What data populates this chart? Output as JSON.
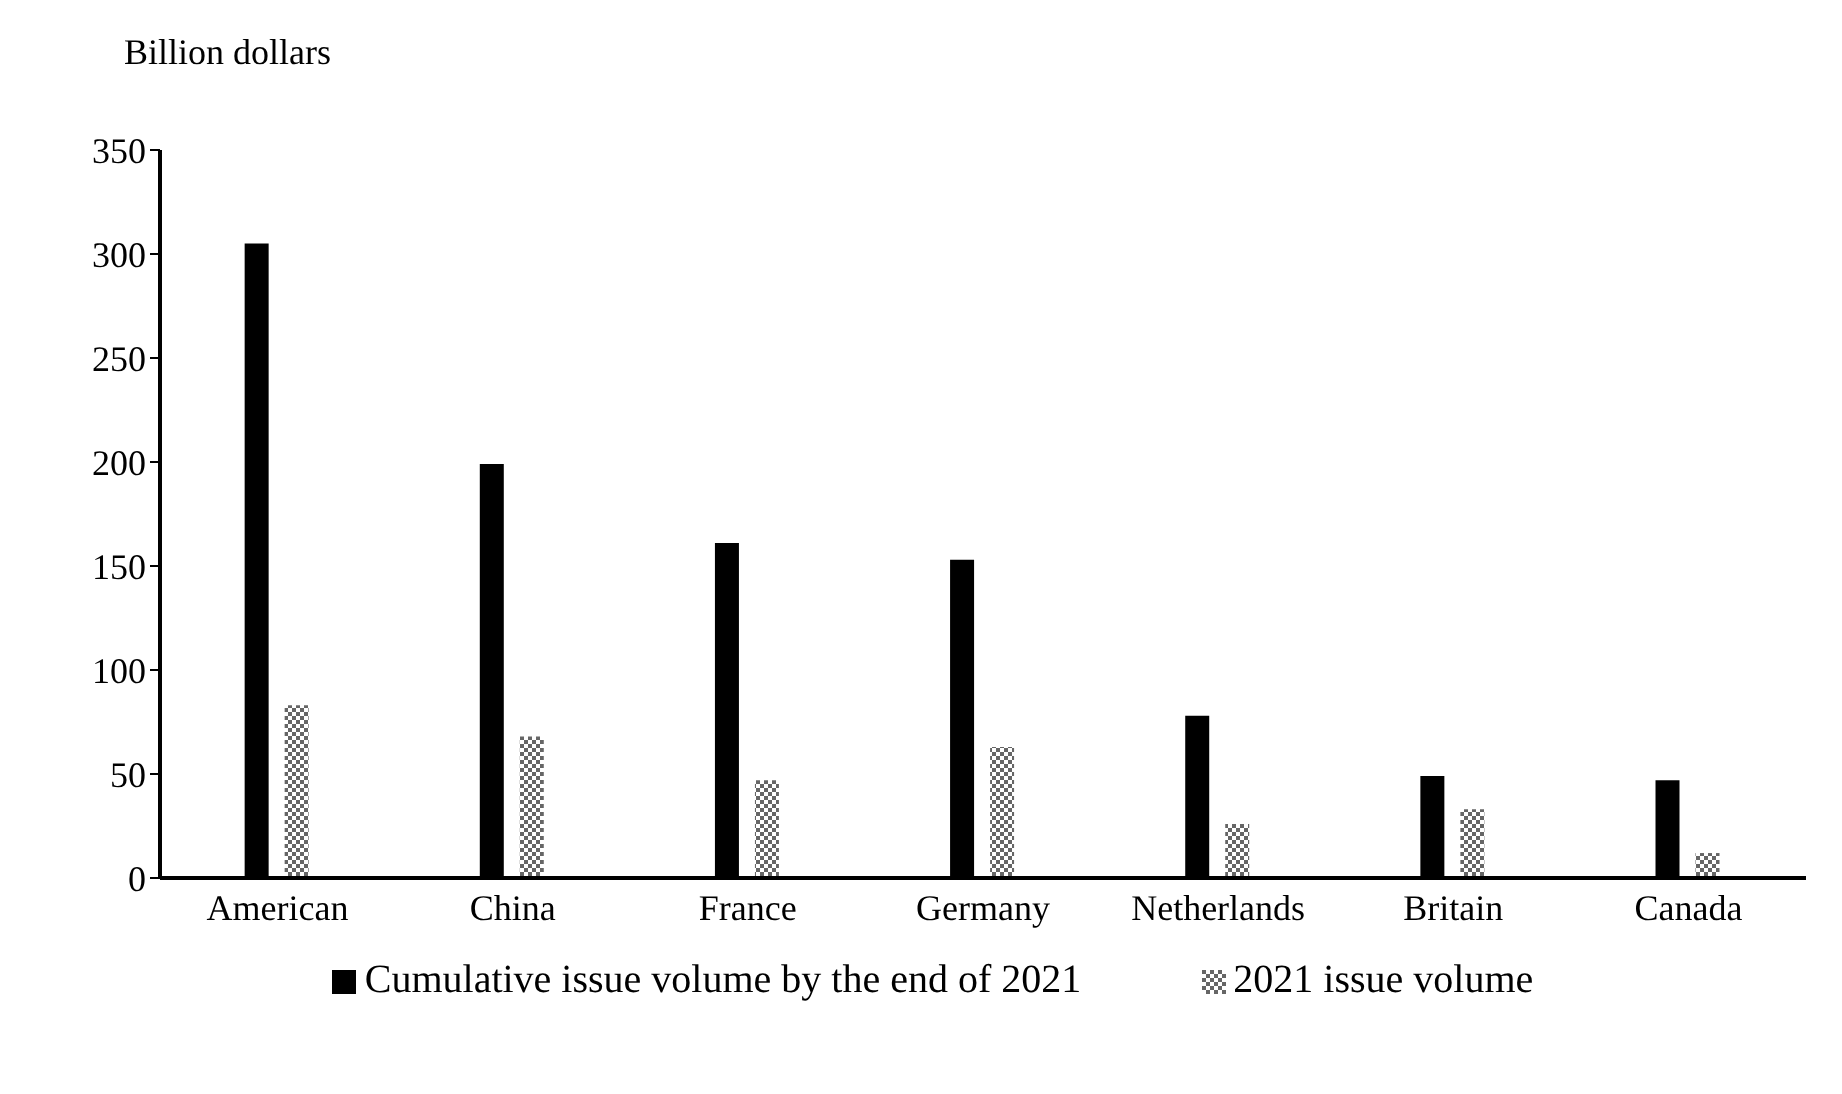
{
  "chart_data": {
    "type": "bar",
    "ylabel": "Billion dollars",
    "categories": [
      "American",
      "China",
      "France",
      "Germany",
      "Netherlands",
      "Britain",
      "Canada"
    ],
    "series": [
      {
        "name": "Cumulative issue volume by the end of 2021",
        "color": "#000000",
        "values": [
          305,
          199,
          161,
          153,
          78,
          49,
          47
        ]
      },
      {
        "name": "2021 issue volume",
        "color": "#666666",
        "values": [
          83,
          68,
          47,
          63,
          26,
          33,
          12
        ]
      }
    ],
    "ylim": [
      0,
      350
    ],
    "yticks": [
      0,
      50,
      100,
      150,
      200,
      250,
      300,
      350
    ],
    "grid": false,
    "legend": "bottom"
  }
}
